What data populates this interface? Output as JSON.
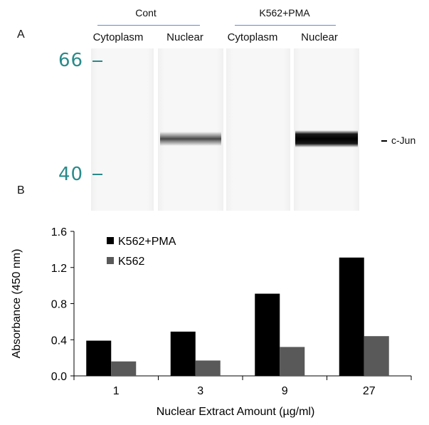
{
  "panel_a": {
    "label": "A",
    "groups": [
      {
        "label": "Cont"
      },
      {
        "label": "K562+PMA"
      }
    ],
    "lanes": [
      {
        "label": "Cytoplasm",
        "band": "none"
      },
      {
        "label": "Nuclear",
        "band": "weak"
      },
      {
        "label": "Cytoplasm",
        "band": "none"
      },
      {
        "label": "Nuclear",
        "band": "strong"
      }
    ],
    "markers": [
      {
        "label": "66"
      },
      {
        "label": "40"
      }
    ],
    "band_label": "c-Jun"
  },
  "panel_b": {
    "label": "B"
  },
  "chart_data": {
    "type": "bar",
    "categories": [
      "1",
      "3",
      "9",
      "27"
    ],
    "series": [
      {
        "name": "K562+PMA",
        "values": [
          0.39,
          0.49,
          0.91,
          1.31
        ],
        "color": "#000000"
      },
      {
        "name": "K562",
        "values": [
          0.16,
          0.17,
          0.32,
          0.44
        ],
        "color": "#595959"
      }
    ],
    "xlabel": "Nuclear Extract Amount (µg/ml)",
    "ylabel": "Absorbance (450 nm)",
    "ylim": [
      0,
      1.6
    ],
    "yticks": [
      "0.0",
      "0.4",
      "0.8",
      "1.2",
      "1.6"
    ],
    "grid": false,
    "legend_position": "top-left"
  }
}
